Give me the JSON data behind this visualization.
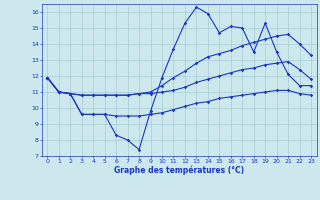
{
  "xlabel": "Graphe des températures (°C)",
  "xlim": [
    -0.5,
    23.5
  ],
  "ylim": [
    7,
    16.5
  ],
  "yticks": [
    7,
    8,
    9,
    10,
    11,
    12,
    13,
    14,
    15,
    16
  ],
  "xticks": [
    0,
    1,
    2,
    3,
    4,
    5,
    6,
    7,
    8,
    9,
    10,
    11,
    12,
    13,
    14,
    15,
    16,
    17,
    18,
    19,
    20,
    21,
    22,
    23
  ],
  "bg_color": "#cce8ec",
  "line_color": "#1a35c8",
  "grid_color": "#a8ccd4",
  "line1": [
    11.9,
    11.0,
    10.9,
    9.6,
    9.6,
    9.6,
    8.3,
    8.0,
    7.4,
    9.8,
    11.9,
    13.7,
    15.3,
    16.3,
    15.9,
    14.7,
    15.1,
    15.0,
    13.5,
    15.3,
    13.5,
    12.1,
    11.4,
    11.4
  ],
  "line2": [
    11.9,
    11.0,
    10.9,
    10.8,
    10.8,
    10.8,
    10.8,
    10.8,
    10.9,
    11.0,
    11.4,
    11.9,
    12.3,
    12.8,
    13.2,
    13.4,
    13.6,
    13.9,
    14.1,
    14.3,
    14.5,
    14.6,
    14.0,
    13.3
  ],
  "line3": [
    11.9,
    11.0,
    10.9,
    10.8,
    10.8,
    10.8,
    10.8,
    10.8,
    10.9,
    10.9,
    11.0,
    11.1,
    11.3,
    11.6,
    11.8,
    12.0,
    12.2,
    12.4,
    12.5,
    12.7,
    12.8,
    12.9,
    12.4,
    11.8
  ],
  "line4": [
    11.9,
    11.0,
    10.9,
    9.6,
    9.6,
    9.6,
    9.5,
    9.5,
    9.5,
    9.6,
    9.7,
    9.9,
    10.1,
    10.3,
    10.4,
    10.6,
    10.7,
    10.8,
    10.9,
    11.0,
    11.1,
    11.1,
    10.9,
    10.8
  ]
}
